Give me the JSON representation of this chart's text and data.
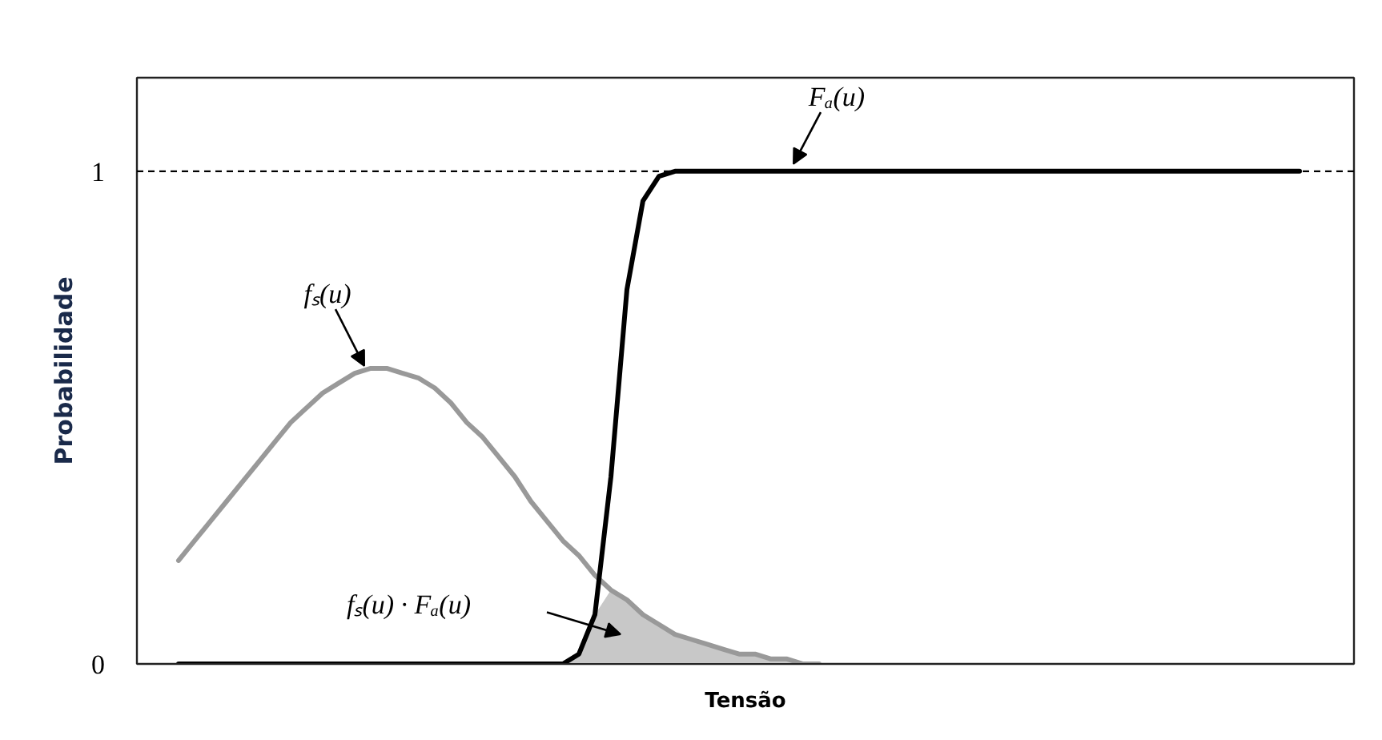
{
  "chart_data": {
    "type": "line",
    "xlabel": "Tensão",
    "ylabel": "Probabilidade",
    "categories": [
      null,
      null,
      null,
      null,
      null,
      null,
      null,
      null,
      null,
      null,
      null,
      null,
      null,
      null,
      null,
      null,
      null,
      null,
      null,
      null,
      null,
      null,
      null,
      null,
      null,
      null,
      null,
      null,
      null,
      null,
      null,
      null,
      null,
      null,
      null,
      null,
      null,
      null,
      null,
      null,
      null,
      null,
      null,
      null,
      null,
      null,
      null,
      null,
      null,
      null,
      null,
      null,
      null,
      null,
      null,
      null,
      null,
      null,
      null,
      null,
      null,
      null,
      null,
      null,
      null,
      null,
      null,
      null,
      null,
      null,
      null
    ],
    "series": [
      {
        "color": "#999999",
        "values": [
          0.21,
          0.25,
          0.29,
          0.33,
          0.37,
          0.41,
          0.45,
          0.49,
          0.52,
          0.55,
          0.57,
          0.59,
          0.6,
          0.6,
          0.59,
          0.58,
          0.56,
          0.53,
          0.49,
          0.46,
          0.42,
          0.38,
          0.33,
          0.29,
          0.25,
          0.22,
          0.18,
          0.15,
          0.13,
          0.1,
          0.08,
          0.06,
          0.05,
          0.04,
          0.03,
          0.02,
          0.02,
          0.01,
          0.01,
          0.0,
          0.0,
          null,
          null,
          null,
          null,
          null,
          null,
          null,
          null,
          null,
          null,
          null,
          null,
          null,
          null,
          null,
          null,
          null,
          null,
          null,
          null,
          null,
          null,
          null,
          null,
          null,
          null,
          null,
          null,
          null,
          null
        ]
      },
      {
        "color": "#000000",
        "values": [
          0,
          0,
          0,
          0,
          0,
          0,
          0,
          0,
          0,
          0,
          0,
          0,
          0,
          0,
          0,
          0,
          0,
          0,
          0,
          0,
          0,
          0,
          0,
          0,
          0,
          0.02,
          0.1,
          0.38,
          0.76,
          0.94,
          0.99,
          1,
          1,
          1,
          1,
          1,
          1,
          1,
          1,
          1,
          1,
          1,
          1,
          1,
          1,
          1,
          1,
          1,
          1,
          1,
          1,
          1,
          1,
          1,
          1,
          1,
          1,
          1,
          1,
          1,
          1,
          1,
          1,
          1,
          1,
          1,
          1,
          1,
          1,
          1,
          1
        ]
      },
      {
        "type": "area",
        "color": "#c8c8c8",
        "values": [
          null,
          null,
          null,
          null,
          null,
          null,
          null,
          null,
          null,
          null,
          null,
          null,
          null,
          null,
          null,
          null,
          null,
          null,
          null,
          null,
          null,
          null,
          null,
          null,
          0.0,
          0.02,
          0.1,
          0.15,
          0.13,
          0.1,
          0.08,
          0.06,
          0.05,
          0.04,
          0.03,
          0.02,
          0.02,
          0.01,
          0.01,
          0.0,
          0.0,
          null,
          null,
          null,
          null,
          null,
          null,
          null,
          null,
          null,
          null,
          null,
          null,
          null,
          null,
          null,
          null,
          null,
          null,
          null,
          null,
          null,
          null,
          null,
          null,
          null,
          null,
          null,
          null,
          null,
          null
        ]
      }
    ],
    "ylim": [
      0,
      1.19
    ],
    "yticks": [
      0,
      1
    ],
    "grid": false,
    "ref_lines": [
      {
        "axis": "y",
        "value": 1,
        "color": "#000000",
        "line_style": "dashed"
      }
    ],
    "annotations": [
      "Fₐ(u)",
      "fₛ(u)",
      "fₛ(u) · Fₐ(u)"
    ]
  }
}
